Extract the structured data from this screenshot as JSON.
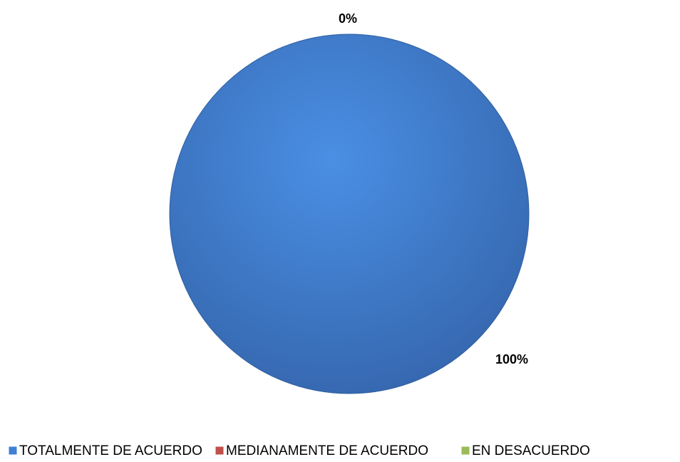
{
  "chart_data": {
    "type": "pie",
    "categories": [
      "TOTALMENTE DE ACUERDO",
      "MEDIANAMENTE DE ACUERDO",
      "EN DESACUERDO"
    ],
    "values": [
      100,
      0,
      0
    ],
    "value_labels": [
      "100%",
      "0%",
      null
    ],
    "colors": [
      "#3f7fd4",
      "#c0504d",
      "#9bbb59"
    ],
    "legend": "bottom"
  }
}
